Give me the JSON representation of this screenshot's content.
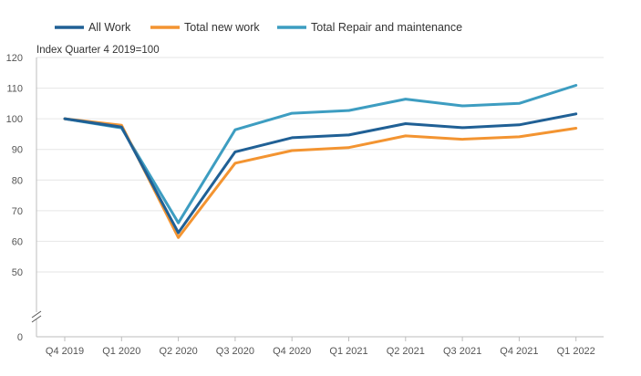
{
  "chart_data": {
    "type": "line",
    "title": "",
    "xlabel": "",
    "ylabel": "Index Quarter 4 2019=100",
    "categories": [
      "Q4 2019",
      "Q1 2020",
      "Q2 2020",
      "Q3 2020",
      "Q4 2020",
      "Q1 2021",
      "Q2 2021",
      "Q3 2021",
      "Q4 2021",
      "Q1 2022"
    ],
    "y_ticks": [
      0,
      50,
      60,
      70,
      80,
      90,
      100,
      110,
      120
    ],
    "ylim": [
      40,
      120
    ],
    "y_axis_break": true,
    "grid": true,
    "legend_position": "top-left",
    "series": [
      {
        "name": "All Work",
        "color": "#206095",
        "values": [
          100.0,
          97.3,
          62.8,
          89.2,
          93.8,
          94.7,
          98.4,
          97.1,
          98.0,
          101.6
        ]
      },
      {
        "name": "Total new work",
        "color": "#F39431",
        "values": [
          100.0,
          97.9,
          61.2,
          85.5,
          89.6,
          90.6,
          94.4,
          93.3,
          94.1,
          96.9
        ]
      },
      {
        "name": "Total Repair and maintenance",
        "color": "#3D9DC1",
        "values": [
          100.0,
          97.0,
          66.0,
          96.4,
          101.8,
          102.7,
          106.4,
          104.2,
          105.0,
          110.9
        ]
      }
    ]
  }
}
